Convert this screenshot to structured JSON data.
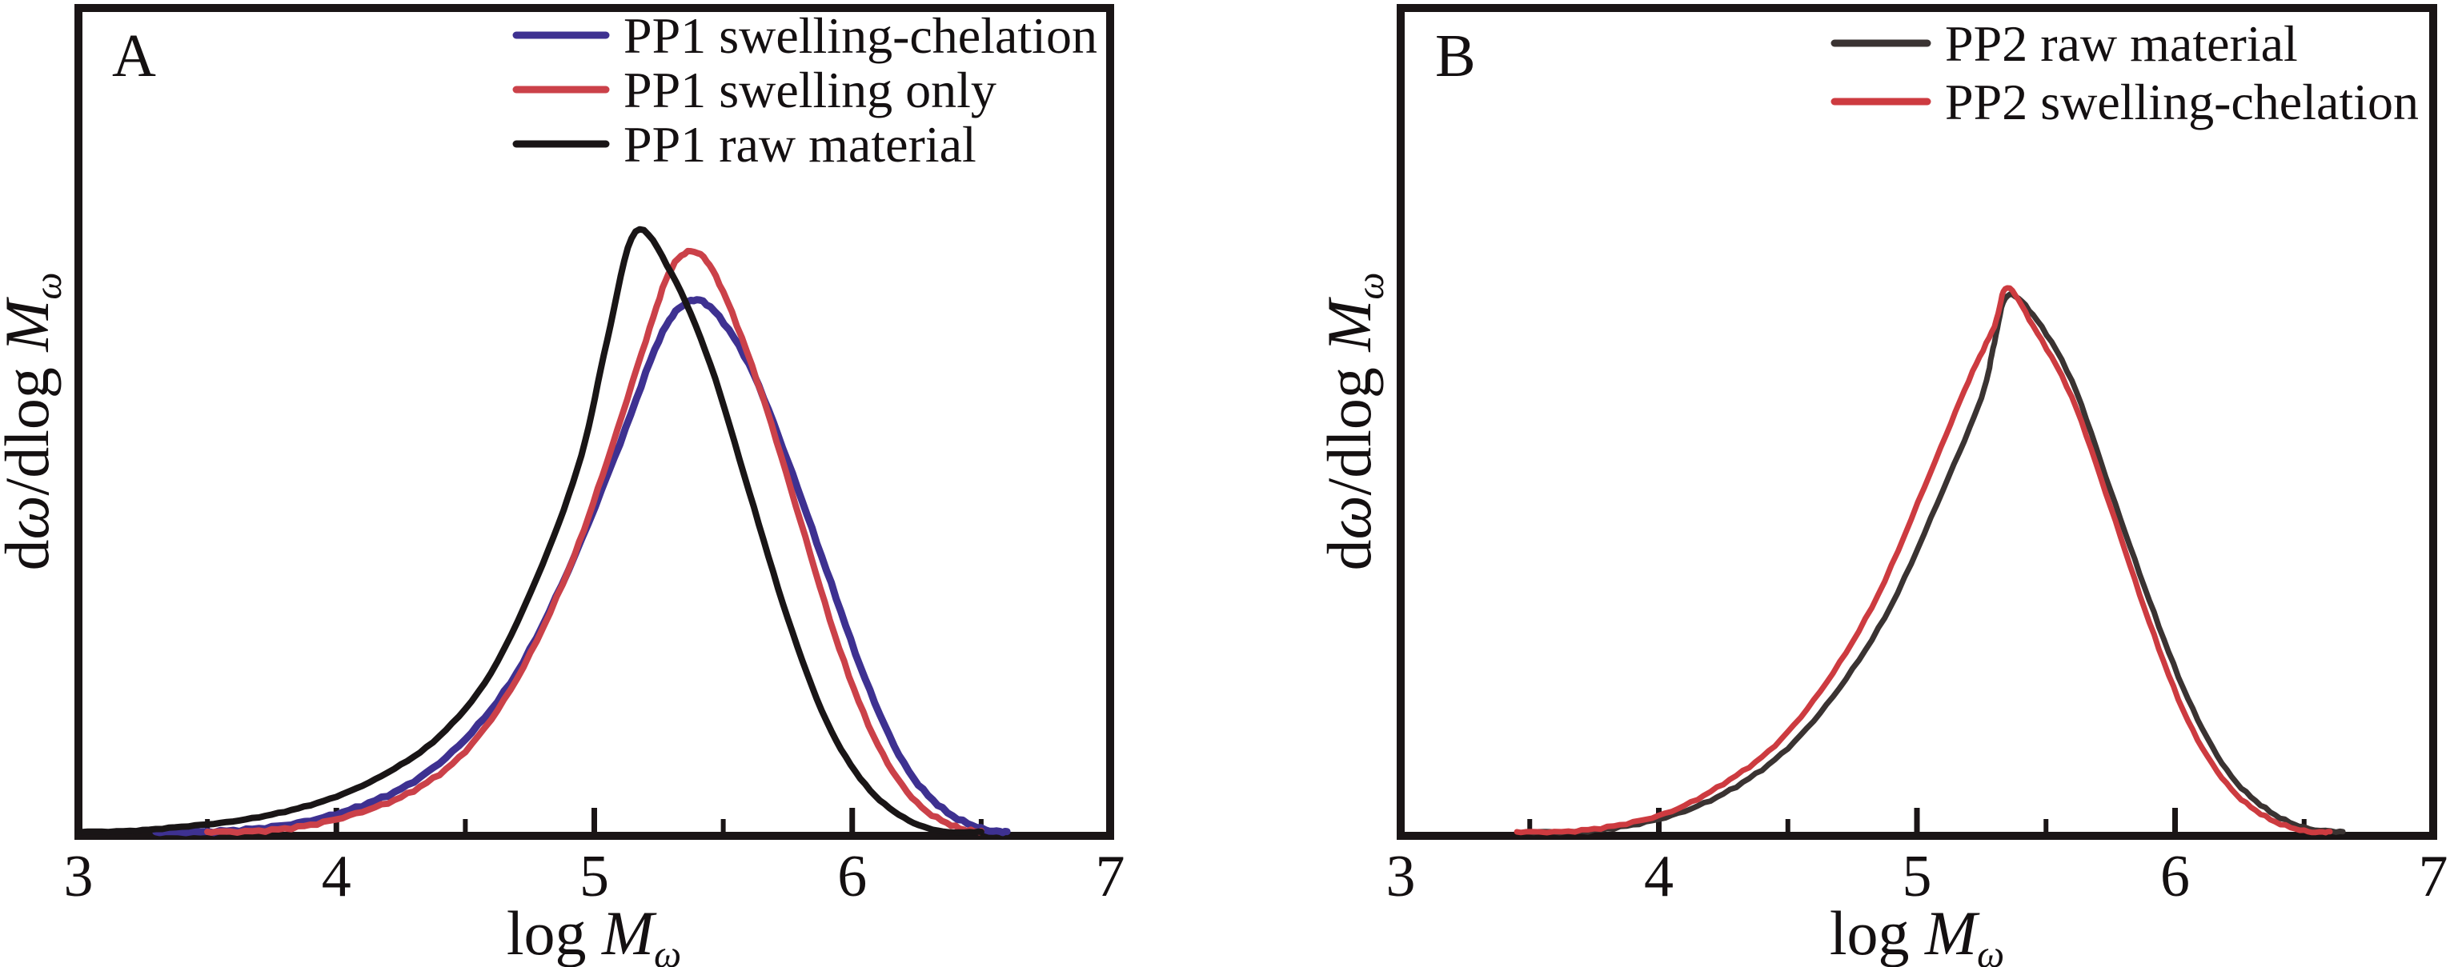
{
  "figure": {
    "background": "#ffffff",
    "axis_color": "#1a1516",
    "text_color": "#141011"
  },
  "chart_data": [
    {
      "type": "line",
      "panel_label": "A",
      "xlabel_parts": [
        {
          "t": "log ",
          "style": "roman"
        },
        {
          "t": "M",
          "style": "italic"
        },
        {
          "t": "ω",
          "style": "subitalic"
        }
      ],
      "ylabel_parts": [
        {
          "t": "d",
          "style": "roman"
        },
        {
          "t": "ω",
          "style": "italic"
        },
        {
          "t": "/dlog ",
          "style": "roman"
        },
        {
          "t": "M",
          "style": "italic"
        },
        {
          "t": "ω",
          "style": "subitalic"
        }
      ],
      "xlim": [
        3,
        7
      ],
      "ylim": [
        0,
        1.37
      ],
      "x_tick_labels": [
        "3",
        "4",
        "5",
        "6",
        "7"
      ],
      "x_tick_values": [
        3,
        4,
        5,
        6,
        7
      ],
      "x_major_ticks": [
        4,
        5,
        6
      ],
      "x_minor_ticks": [
        3.5,
        4.5,
        5.5,
        6.5
      ],
      "grid": false,
      "legend_position": "top-center",
      "series": [
        {
          "name": "PP1 swelling-chelation",
          "color": "#3e3191",
          "width": 9,
          "jitter": 1.6,
          "points": [
            [
              3.3,
              0.002
            ],
            [
              3.5,
              0.006
            ],
            [
              3.7,
              0.012
            ],
            [
              3.9,
              0.025
            ],
            [
              4.1,
              0.05
            ],
            [
              4.3,
              0.09
            ],
            [
              4.5,
              0.16
            ],
            [
              4.7,
              0.27
            ],
            [
              4.9,
              0.44
            ],
            [
              5.1,
              0.65
            ],
            [
              5.25,
              0.82
            ],
            [
              5.35,
              0.88
            ],
            [
              5.45,
              0.875
            ],
            [
              5.6,
              0.78
            ],
            [
              5.75,
              0.62
            ],
            [
              5.9,
              0.44
            ],
            [
              6.05,
              0.26
            ],
            [
              6.2,
              0.12
            ],
            [
              6.35,
              0.045
            ],
            [
              6.5,
              0.012
            ],
            [
              6.6,
              0.002
            ]
          ]
        },
        {
          "name": "PP1 swelling only",
          "color": "#cb4149",
          "width": 8,
          "jitter": 1.6,
          "points": [
            [
              3.5,
              0.002
            ],
            [
              3.7,
              0.008
            ],
            [
              3.9,
              0.018
            ],
            [
              4.1,
              0.04
            ],
            [
              4.3,
              0.075
            ],
            [
              4.5,
              0.14
            ],
            [
              4.7,
              0.26
            ],
            [
              4.9,
              0.44
            ],
            [
              5.05,
              0.62
            ],
            [
              5.2,
              0.82
            ],
            [
              5.3,
              0.94
            ],
            [
              5.4,
              0.965
            ],
            [
              5.5,
              0.9
            ],
            [
              5.65,
              0.73
            ],
            [
              5.8,
              0.52
            ],
            [
              5.95,
              0.31
            ],
            [
              6.1,
              0.15
            ],
            [
              6.25,
              0.055
            ],
            [
              6.4,
              0.015
            ],
            [
              6.5,
              0.003
            ]
          ]
        },
        {
          "name": "PP1 raw material",
          "color": "#191516",
          "width": 8,
          "jitter": 0.6,
          "points": [
            [
              3.0,
              0.004
            ],
            [
              3.2,
              0.008
            ],
            [
              3.4,
              0.015
            ],
            [
              3.6,
              0.024
            ],
            [
              3.8,
              0.04
            ],
            [
              4.0,
              0.065
            ],
            [
              4.2,
              0.105
            ],
            [
              4.4,
              0.165
            ],
            [
              4.6,
              0.27
            ],
            [
              4.8,
              0.45
            ],
            [
              4.95,
              0.63
            ],
            [
              5.05,
              0.82
            ],
            [
              5.16,
              1.0
            ],
            [
              5.3,
              0.93
            ],
            [
              5.45,
              0.78
            ],
            [
              5.6,
              0.57
            ],
            [
              5.75,
              0.36
            ],
            [
              5.9,
              0.19
            ],
            [
              6.05,
              0.085
            ],
            [
              6.2,
              0.03
            ],
            [
              6.35,
              0.007
            ],
            [
              6.5,
              0.0
            ]
          ]
        }
      ]
    },
    {
      "type": "line",
      "panel_label": "B",
      "xlabel_parts": [
        {
          "t": "log ",
          "style": "roman"
        },
        {
          "t": "M",
          "style": "italic"
        },
        {
          "t": "ω",
          "style": "subitalic"
        }
      ],
      "ylabel_parts": [
        {
          "t": "d",
          "style": "roman"
        },
        {
          "t": "ω",
          "style": "italic"
        },
        {
          "t": "/dlog ",
          "style": "roman"
        },
        {
          "t": "M",
          "style": "italic"
        },
        {
          "t": "ω",
          "style": "subitalic"
        }
      ],
      "xlim": [
        3,
        7
      ],
      "ylim": [
        0,
        1.51
      ],
      "x_tick_labels": [
        "3",
        "4",
        "5",
        "6",
        "7"
      ],
      "x_tick_values": [
        3,
        4,
        5,
        6,
        7
      ],
      "x_major_ticks": [
        4,
        5,
        6
      ],
      "x_minor_ticks": [
        3.5,
        4.5,
        5.5,
        6.5
      ],
      "grid": false,
      "legend_position": "top-center",
      "series": [
        {
          "name": "PP2 raw material",
          "color": "#3a3332",
          "width": 7,
          "jitter": 1.3,
          "points": [
            [
              3.5,
              0.002
            ],
            [
              3.7,
              0.008
            ],
            [
              3.9,
              0.02
            ],
            [
              4.1,
              0.045
            ],
            [
              4.3,
              0.09
            ],
            [
              4.5,
              0.16
            ],
            [
              4.7,
              0.27
            ],
            [
              4.9,
              0.42
            ],
            [
              5.1,
              0.63
            ],
            [
              5.25,
              0.8
            ],
            [
              5.3,
              0.9
            ],
            [
              5.35,
              0.985
            ],
            [
              5.45,
              0.95
            ],
            [
              5.6,
              0.83
            ],
            [
              5.75,
              0.63
            ],
            [
              5.9,
              0.43
            ],
            [
              6.05,
              0.25
            ],
            [
              6.2,
              0.12
            ],
            [
              6.35,
              0.05
            ],
            [
              6.5,
              0.015
            ],
            [
              6.65,
              0.003
            ]
          ]
        },
        {
          "name": "PP2 swelling-chelation",
          "color": "#cd3b40",
          "width": 7,
          "jitter": 1.3,
          "points": [
            [
              3.45,
              0.002
            ],
            [
              3.65,
              0.008
            ],
            [
              3.85,
              0.02
            ],
            [
              4.05,
              0.045
            ],
            [
              4.25,
              0.095
            ],
            [
              4.45,
              0.165
            ],
            [
              4.65,
              0.28
            ],
            [
              4.85,
              0.44
            ],
            [
              5.05,
              0.66
            ],
            [
              5.2,
              0.83
            ],
            [
              5.3,
              0.93
            ],
            [
              5.35,
              1.0
            ],
            [
              5.45,
              0.93
            ],
            [
              5.6,
              0.8
            ],
            [
              5.75,
              0.6
            ],
            [
              5.9,
              0.39
            ],
            [
              6.05,
              0.21
            ],
            [
              6.2,
              0.095
            ],
            [
              6.35,
              0.035
            ],
            [
              6.5,
              0.009
            ],
            [
              6.6,
              0.002
            ]
          ]
        }
      ]
    }
  ]
}
